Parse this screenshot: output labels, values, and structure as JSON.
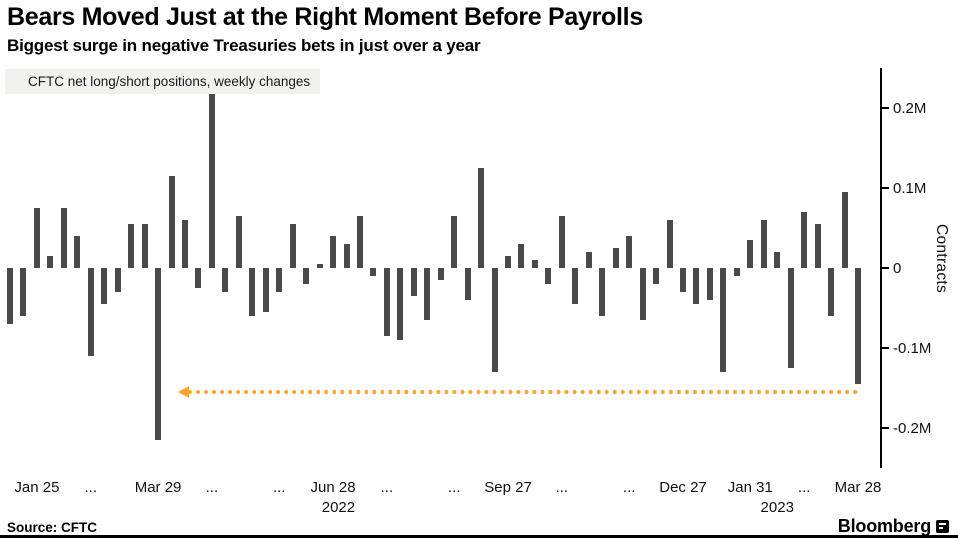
{
  "chart_data": {
    "type": "bar",
    "title": "Bears Moved Just at the Right Moment Before Payrolls",
    "subtitle": "Biggest surge in negative Treasuries bets in just over a year",
    "legend": "CFTC net long/short positions, weekly changes",
    "ylabel": "Contracts",
    "unit": "M contracts (weekly change)",
    "ylim": [
      -0.25,
      0.25
    ],
    "grid": false,
    "legend_position": "top-left",
    "bar_color": "#4a4a4a",
    "values": [
      -0.07,
      -0.06,
      0.075,
      0.015,
      0.075,
      0.04,
      -0.11,
      -0.045,
      -0.03,
      0.055,
      0.055,
      -0.215,
      0.115,
      0.06,
      -0.025,
      0.22,
      -0.03,
      0.065,
      -0.06,
      -0.055,
      -0.03,
      0.055,
      -0.02,
      0.005,
      0.04,
      0.03,
      0.065,
      -0.01,
      -0.085,
      -0.09,
      -0.035,
      -0.065,
      -0.015,
      0.065,
      -0.04,
      0.125,
      -0.13,
      0.015,
      0.03,
      0.01,
      -0.02,
      0.065,
      -0.045,
      0.02,
      -0.06,
      0.025,
      0.04,
      -0.065,
      -0.02,
      0.06,
      -0.03,
      -0.045,
      -0.04,
      -0.13,
      -0.01,
      0.035,
      0.06,
      0.02,
      -0.125,
      0.07,
      0.055,
      -0.06,
      0.095,
      -0.145
    ],
    "x_tick_labels": [
      {
        "index": 2,
        "label": "Jan 25"
      },
      {
        "index": 6,
        "label": "..."
      },
      {
        "index": 11,
        "label": "Mar 29"
      },
      {
        "index": 15,
        "label": "..."
      },
      {
        "index": 20,
        "label": "..."
      },
      {
        "index": 24,
        "label": "Jun 28"
      },
      {
        "index": 28,
        "label": "..."
      },
      {
        "index": 33,
        "label": "..."
      },
      {
        "index": 37,
        "label": "Sep 27"
      },
      {
        "index": 41,
        "label": "..."
      },
      {
        "index": 46,
        "label": "..."
      },
      {
        "index": 50,
        "label": "Dec 27"
      },
      {
        "index": 55,
        "label": "Jan 31"
      },
      {
        "index": 59,
        "label": "..."
      },
      {
        "index": 63,
        "label": "Mar 28"
      }
    ],
    "year_labels": [
      {
        "index": 24.4,
        "label": "2022"
      },
      {
        "index": 57.0,
        "label": "2023"
      }
    ],
    "y_ticks": [
      {
        "value": 0.2,
        "label": "0.2M"
      },
      {
        "value": 0.1,
        "label": "0.1M"
      },
      {
        "value": 0,
        "label": "0"
      },
      {
        "value": -0.1,
        "label": "-0.1M"
      },
      {
        "value": -0.2,
        "label": "-0.2M"
      }
    ],
    "annotation": {
      "type": "dotted-line-with-left-arrow",
      "value": -0.155,
      "start_index": 13.2,
      "end_index": 63,
      "color": "#ffa22b"
    }
  },
  "footer": {
    "source": "Source: CFTC",
    "brand": "Bloomberg"
  }
}
